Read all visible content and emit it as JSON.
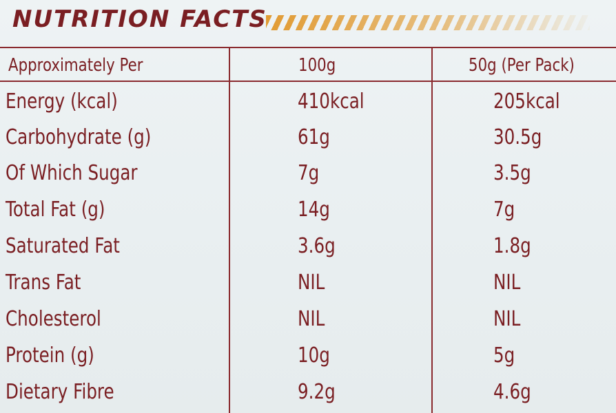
{
  "panel": {
    "title": "NUTRITION FACTS",
    "accent_color": "#e0962a",
    "text_color": "#7a1e22"
  },
  "table": {
    "headers": [
      "Approximately Per",
      "100g",
      "50g (Per Pack)"
    ],
    "rows": [
      [
        "Energy (kcal)",
        "410kcal",
        "205kcal"
      ],
      [
        "Carbohydrate (g)",
        "61g",
        "30.5g"
      ],
      [
        "Of Which Sugar",
        "7g",
        "3.5g"
      ],
      [
        "Total Fat (g)",
        "14g",
        "7g"
      ],
      [
        "Saturated Fat",
        "3.6g",
        "1.8g"
      ],
      [
        "Trans Fat",
        "NIL",
        "NIL"
      ],
      [
        "Cholesterol",
        "NIL",
        "NIL"
      ],
      [
        "Protein (g)",
        "10g",
        "5g"
      ],
      [
        "Dietary Fibre",
        "9.2g",
        "4.6g"
      ]
    ]
  }
}
